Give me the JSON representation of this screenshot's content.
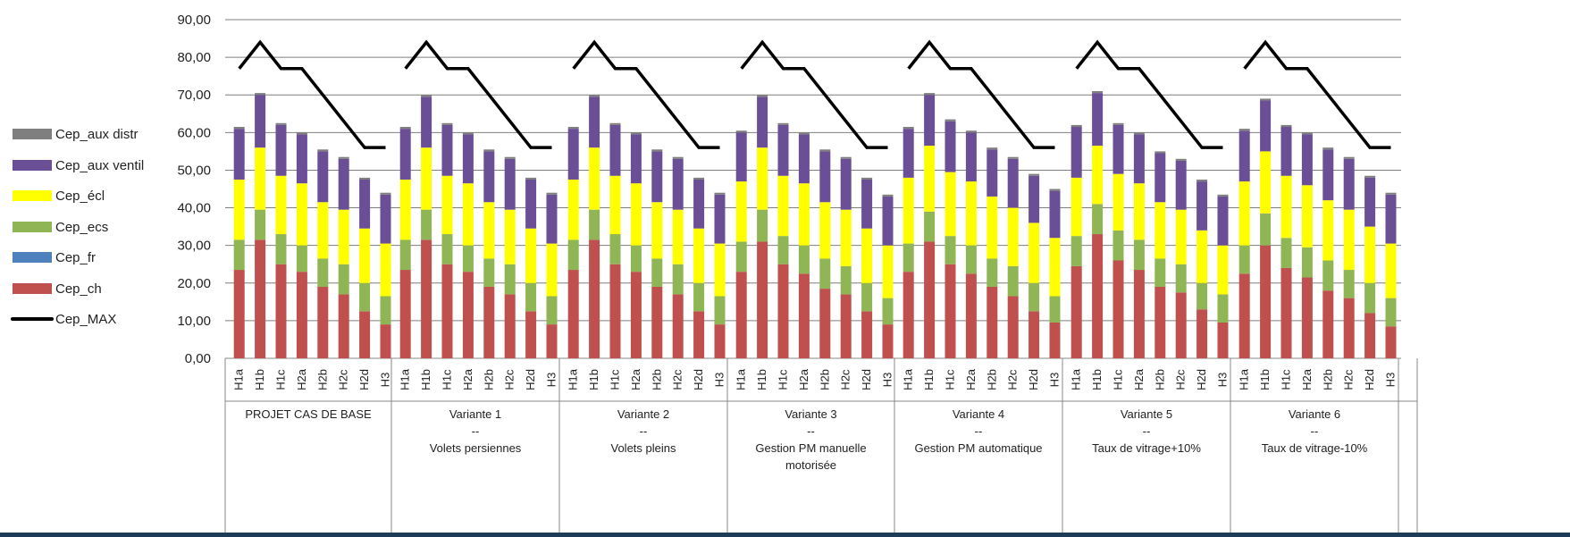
{
  "chart_data": {
    "type": "bar",
    "stacked": true,
    "ylim": [
      0,
      90
    ],
    "y_tick_labels": [
      "0,00",
      "10,00",
      "20,00",
      "30,00",
      "40,00",
      "50,00",
      "60,00",
      "70,00",
      "80,00",
      "90,00"
    ],
    "grid": true,
    "legend_position": "left",
    "categories": [
      "H1a",
      "H1b",
      "H1c",
      "H2a",
      "H2b",
      "H2c",
      "H2d",
      "H3"
    ],
    "legend": [
      {
        "name": "Cep_aux distr",
        "color": "#7f7f7f"
      },
      {
        "name": "Cep_aux ventil",
        "color": "#6b4f96"
      },
      {
        "name": "Cep_écl",
        "color": "#ffff00"
      },
      {
        "name": "Cep_ecs",
        "color": "#8fb554"
      },
      {
        "name": "Cep_fr",
        "color": "#4f81bd"
      },
      {
        "name": "Cep_ch",
        "color": "#c0504d"
      },
      {
        "name": "Cep_MAX",
        "color": "#000000"
      }
    ],
    "groups": [
      {
        "label_lines": [
          "PROJET CAS DE BASE"
        ],
        "ch": [
          23.5,
          31.5,
          25.0,
          23.0,
          19.0,
          17.0,
          12.5,
          9.0
        ],
        "ecs": [
          8.0,
          8.0,
          8.0,
          7.0,
          7.5,
          8.0,
          7.5,
          7.5
        ],
        "ecl": [
          16.0,
          16.5,
          15.5,
          16.5,
          15.0,
          14.5,
          14.5,
          14.0
        ],
        "vent": [
          13.5,
          14.0,
          13.5,
          13.0,
          13.5,
          13.5,
          13.0,
          13.0
        ],
        "distr": [
          0.5,
          0.5,
          0.5,
          0.5,
          0.5,
          0.5,
          0.5,
          0.5
        ],
        "max": [
          77,
          84,
          77,
          77,
          70,
          63,
          56,
          56
        ]
      },
      {
        "label_lines": [
          "Variante 1",
          "--",
          "Volets persiennes"
        ],
        "ch": [
          23.5,
          31.5,
          25.0,
          23.0,
          19.0,
          17.0,
          12.5,
          9.0
        ],
        "ecs": [
          8.0,
          8.0,
          8.0,
          7.0,
          7.5,
          8.0,
          7.5,
          7.5
        ],
        "ecl": [
          16.0,
          16.5,
          15.5,
          16.5,
          15.0,
          14.5,
          14.5,
          14.0
        ],
        "vent": [
          13.5,
          13.5,
          13.5,
          13.0,
          13.5,
          13.5,
          13.0,
          13.0
        ],
        "distr": [
          0.5,
          0.5,
          0.5,
          0.5,
          0.5,
          0.5,
          0.5,
          0.5
        ],
        "max": [
          77,
          84,
          77,
          77,
          70,
          63,
          56,
          56
        ]
      },
      {
        "label_lines": [
          "Variante 2",
          "--",
          "Volets pleins"
        ],
        "ch": [
          23.5,
          31.5,
          25.0,
          23.0,
          19.0,
          17.0,
          12.5,
          9.0
        ],
        "ecs": [
          8.0,
          8.0,
          8.0,
          7.0,
          7.5,
          8.0,
          7.5,
          7.5
        ],
        "ecl": [
          16.0,
          16.5,
          15.5,
          16.5,
          15.0,
          14.5,
          14.5,
          14.0
        ],
        "vent": [
          13.5,
          13.5,
          13.5,
          13.0,
          13.5,
          13.5,
          13.0,
          13.0
        ],
        "distr": [
          0.5,
          0.5,
          0.5,
          0.5,
          0.5,
          0.5,
          0.5,
          0.5
        ],
        "max": [
          77,
          84,
          77,
          77,
          70,
          63,
          56,
          56
        ]
      },
      {
        "label_lines": [
          "Variante 3",
          "--",
          "Gestion PM manuelle",
          "motorisée"
        ],
        "ch": [
          23.0,
          31.0,
          25.0,
          22.5,
          18.5,
          17.0,
          12.5,
          9.0
        ],
        "ecs": [
          8.0,
          8.5,
          7.5,
          7.5,
          8.0,
          7.5,
          7.5,
          7.0
        ],
        "ecl": [
          16.0,
          16.5,
          16.0,
          16.5,
          15.0,
          15.0,
          14.5,
          14.0
        ],
        "vent": [
          13.0,
          13.5,
          13.5,
          13.0,
          13.5,
          13.5,
          13.0,
          13.0
        ],
        "distr": [
          0.5,
          0.5,
          0.5,
          0.5,
          0.5,
          0.5,
          0.5,
          0.5
        ],
        "max": [
          77,
          84,
          77,
          77,
          70,
          63,
          56,
          56
        ]
      },
      {
        "label_lines": [
          "Variante 4",
          "--",
          "Gestion PM automatique"
        ],
        "ch": [
          23.0,
          31.0,
          25.0,
          22.5,
          19.0,
          16.5,
          12.5,
          9.5
        ],
        "ecs": [
          7.5,
          8.0,
          7.5,
          7.5,
          7.5,
          8.0,
          7.5,
          7.0
        ],
        "ecl": [
          17.5,
          17.5,
          17.0,
          17.0,
          16.5,
          15.5,
          16.0,
          15.5
        ],
        "vent": [
          13.0,
          13.5,
          13.5,
          13.0,
          12.5,
          13.0,
          12.5,
          12.5
        ],
        "distr": [
          0.5,
          0.5,
          0.5,
          0.5,
          0.5,
          0.5,
          0.5,
          0.5
        ],
        "max": [
          77,
          84,
          77,
          77,
          70,
          63,
          56,
          56
        ]
      },
      {
        "label_lines": [
          "Variante 5",
          "--",
          "Taux de vitrage+10%"
        ],
        "ch": [
          24.5,
          33.0,
          26.0,
          23.5,
          19.0,
          17.5,
          13.0,
          9.5
        ],
        "ecs": [
          8.0,
          8.0,
          8.0,
          8.0,
          7.5,
          7.5,
          7.0,
          7.5
        ],
        "ecl": [
          15.5,
          15.5,
          15.0,
          15.0,
          15.0,
          14.5,
          14.0,
          13.0
        ],
        "vent": [
          13.5,
          14.0,
          13.0,
          13.0,
          13.0,
          13.0,
          13.0,
          13.0
        ],
        "distr": [
          0.5,
          0.5,
          0.5,
          0.5,
          0.5,
          0.5,
          0.5,
          0.5
        ],
        "max": [
          77,
          84,
          77,
          77,
          70,
          63,
          56,
          56
        ]
      },
      {
        "label_lines": [
          "Variante 6",
          "--",
          "Taux de vitrage-10%"
        ],
        "ch": [
          22.5,
          30.0,
          24.0,
          21.5,
          18.0,
          16.0,
          12.0,
          8.5
        ],
        "ecs": [
          7.5,
          8.5,
          8.0,
          8.0,
          8.0,
          7.5,
          8.0,
          7.5
        ],
        "ecl": [
          17.0,
          16.5,
          16.5,
          16.5,
          16.0,
          16.0,
          15.0,
          14.5
        ],
        "vent": [
          13.5,
          13.5,
          13.0,
          13.5,
          13.5,
          13.5,
          13.0,
          13.0
        ],
        "distr": [
          0.5,
          0.5,
          0.5,
          0.5,
          0.5,
          0.5,
          0.5,
          0.5
        ],
        "max": [
          77,
          84,
          77,
          77,
          70,
          63,
          56,
          56
        ]
      }
    ]
  }
}
